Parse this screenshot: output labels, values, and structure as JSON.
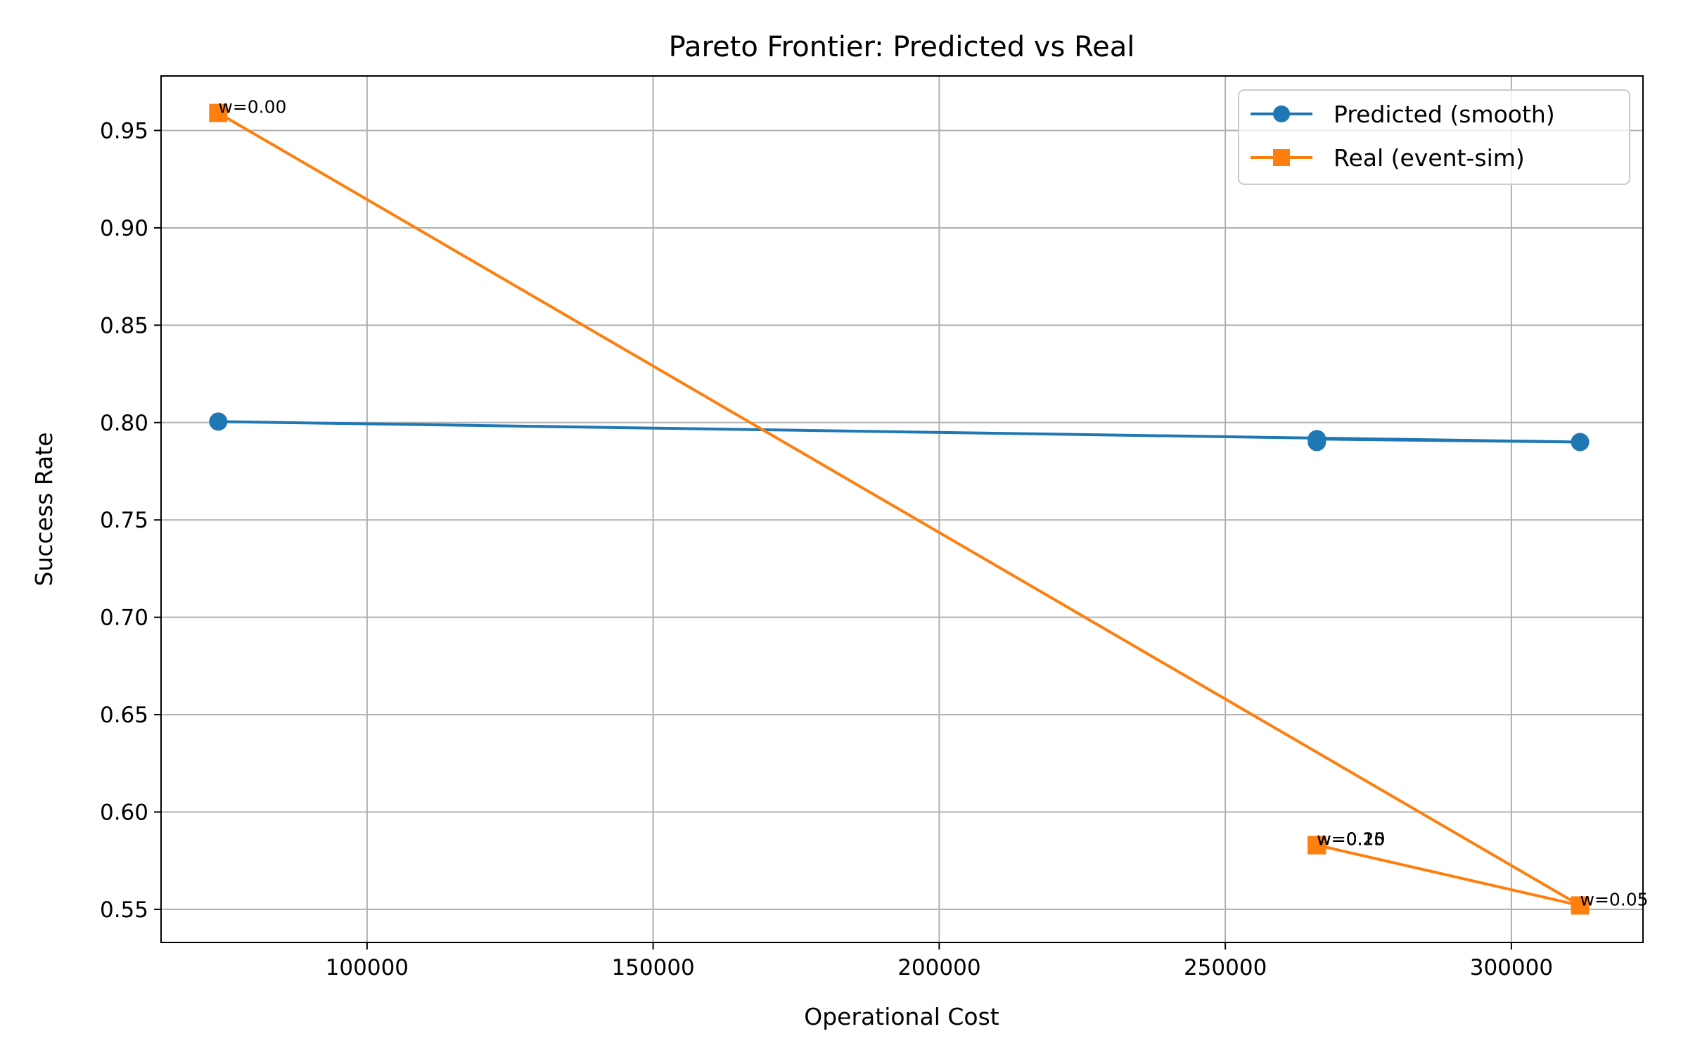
{
  "chart_data": {
    "type": "line",
    "title": "Pareto Frontier: Predicted vs Real",
    "xlabel": "Operational Cost",
    "ylabel": "Success Rate",
    "xlim": [
      64000,
      323000
    ],
    "ylim": [
      0.533,
      0.978
    ],
    "xticks": [
      100000,
      150000,
      200000,
      250000,
      300000
    ],
    "xtick_labels": [
      "100000",
      "150000",
      "200000",
      "250000",
      "300000"
    ],
    "yticks": [
      0.55,
      0.6,
      0.65,
      0.7,
      0.75,
      0.8,
      0.85,
      0.9,
      0.95
    ],
    "ytick_labels": [
      "0.55",
      "0.60",
      "0.65",
      "0.70",
      "0.75",
      "0.80",
      "0.85",
      "0.90",
      "0.95"
    ],
    "grid": true,
    "legend_position": "top-right",
    "series": [
      {
        "name": "Predicted (smooth)",
        "color": "#1f77b4",
        "marker": "circle",
        "x": [
          74000,
          312000,
          266000,
          266000,
          266000,
          266000
        ],
        "y": [
          0.8005,
          0.79,
          0.7915,
          0.791,
          0.7905,
          0.79
        ]
      },
      {
        "name": "Real (event-sim)",
        "color": "#ff7f0e",
        "marker": "square",
        "x": [
          74000,
          312000,
          266000,
          266000,
          266000,
          266000
        ],
        "y": [
          0.959,
          0.552,
          0.583,
          0.583,
          0.583,
          0.583
        ]
      }
    ],
    "annotations": [
      {
        "text": "w=0.00",
        "x": 74000,
        "y": 0.959
      },
      {
        "text": "w=0.05",
        "x": 312000,
        "y": 0.552
      },
      {
        "text": "w=0.10",
        "x": 266000,
        "y": 0.583
      },
      {
        "text": "w=0.15",
        "x": 266000,
        "y": 0.583
      },
      {
        "text": "w=0.20",
        "x": 266000,
        "y": 0.583
      },
      {
        "text": "w=0.25",
        "x": 266000,
        "y": 0.583
      }
    ]
  }
}
